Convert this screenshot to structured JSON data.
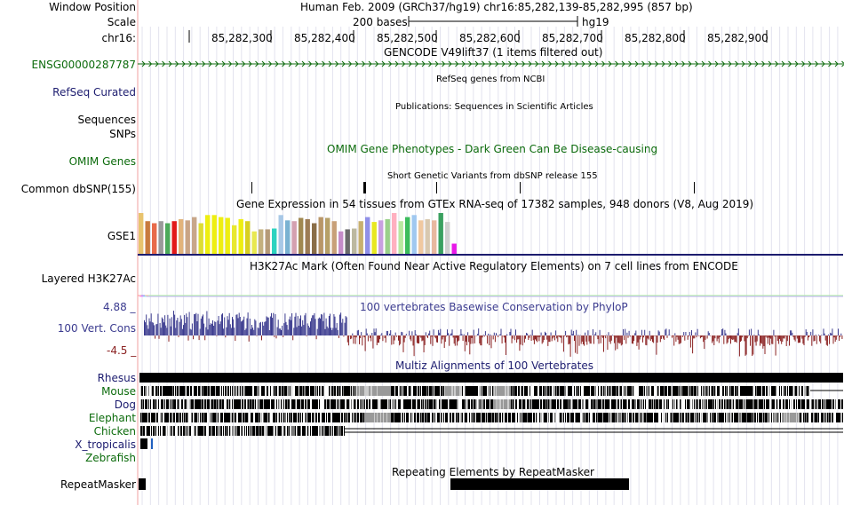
{
  "header": {
    "window_position_label": "Window Position",
    "window_position_value": "Human Feb. 2009 (GRCh37/hg19)   chr16:85,282,139-85,282,995 (857 bp)",
    "scale_label": "Scale",
    "scale_text": "200 bases",
    "scale_assembly": "hg19",
    "chrom_label": "chr16:",
    "ticks": [
      "85,282,300",
      "85,282,400",
      "85,282,500",
      "85,282,600",
      "85,282,700",
      "85,282,800",
      "85,282,900"
    ]
  },
  "gencode": {
    "title": "GENCODE V49lift37 (1 items filtered out)",
    "label": "ENSG00000287787"
  },
  "refseq": {
    "label": "RefSeq Curated",
    "title": "RefSeq genes from NCBI"
  },
  "publications": {
    "title": "Publications: Sequences in Scientific Articles",
    "label1": "Sequences",
    "label2": "SNPs"
  },
  "omim": {
    "title": "OMIM Gene Phenotypes - Dark Green Can Be Disease-causing",
    "label": "OMIM Genes"
  },
  "dbsnp": {
    "title": "Short Genetic Variants from dbSNP release 155",
    "label": "Common dbSNP(155)"
  },
  "gtex": {
    "title": "Gene Expression in 54 tissues from GTEx RNA-seq of 17382 samples, 948 donors (V8, Aug 2019)",
    "label": "GSE1"
  },
  "h3k27ac": {
    "title": "H3K27Ac Mark (Often Found Near Active Regulatory Elements) on 7 cell lines from ENCODE",
    "label": "Layered H3K27Ac"
  },
  "conservation": {
    "title": "100 vertebrates Basewise Conservation by PhyloP",
    "label": "100 Vert. Cons",
    "max": "4.88 _",
    "min": "-4.5 _"
  },
  "multiz": {
    "title": "Multiz Alignments of 100 Vertebrates",
    "species": [
      {
        "name": "Rhesus",
        "color": "#1c1c6f"
      },
      {
        "name": "Mouse",
        "color": "#0c6b0c"
      },
      {
        "name": "Dog",
        "color": "#1c1c6f"
      },
      {
        "name": "Elephant",
        "color": "#0c6b0c"
      },
      {
        "name": "Chicken",
        "color": "#0c6b0c"
      },
      {
        "name": "X_tropicalis",
        "color": "#1c1c6f"
      },
      {
        "name": "Zebrafish",
        "color": "#0c6b0c"
      }
    ]
  },
  "repeatmasker": {
    "title": "Repeating Elements by RepeatMasker",
    "label": "RepeatMasker"
  },
  "colors": {
    "navy": "#1c1c6f",
    "green": "#0c6b0c",
    "phylo_pos": "#3b3b8f",
    "phylo_neg": "#8b2222",
    "gtex_bars": [
      "#e8c36e",
      "#c87a3e",
      "#e86a4a",
      "#9a9a9a",
      "#4caa5a",
      "#e21a1a",
      "#e2b37a",
      "#c9a485",
      "#c8a78a",
      "#dddd33",
      "#eeee11",
      "#eeee11",
      "#eeee11",
      "#eeee11",
      "#e8e830",
      "#eeee11",
      "#d8d020",
      "#e8e850",
      "#c4b07e",
      "#b59a78",
      "#2cd3c0",
      "#a8c8e6",
      "#7ab2d2",
      "#d4a0b0",
      "#a08850",
      "#9c7c55",
      "#8a6e48",
      "#b89668",
      "#b6a068",
      "#c8a078",
      "#c58cc8",
      "#6a6a6a",
      "#bcb8a0",
      "#c8b070",
      "#9090e8",
      "#e8e820",
      "#c8a0e0",
      "#9ad08a",
      "#ffb0c0",
      "#b8e8a0",
      "#3cbc5c",
      "#a0c8f0",
      "#f0c8a0",
      "#d8c8b0",
      "#e8b8a0",
      "#3aa060",
      "#d0d0d0",
      "#e818e8"
    ],
    "gtex_vals": [
      1.0,
      0.8,
      0.75,
      0.8,
      0.75,
      0.8,
      0.85,
      0.82,
      0.9,
      0.75,
      0.95,
      0.95,
      0.9,
      0.88,
      0.7,
      0.85,
      0.8,
      0.55,
      0.6,
      0.6,
      0.62,
      0.95,
      0.82,
      0.8,
      0.88,
      0.85,
      0.75,
      0.9,
      0.88,
      0.8,
      0.55,
      0.6,
      0.62,
      0.8,
      0.9,
      0.78,
      0.82,
      0.85,
      1.0,
      0.8,
      0.9,
      0.95,
      0.82,
      0.85,
      0.82,
      1.0,
      0.78,
      0.25
    ]
  }
}
